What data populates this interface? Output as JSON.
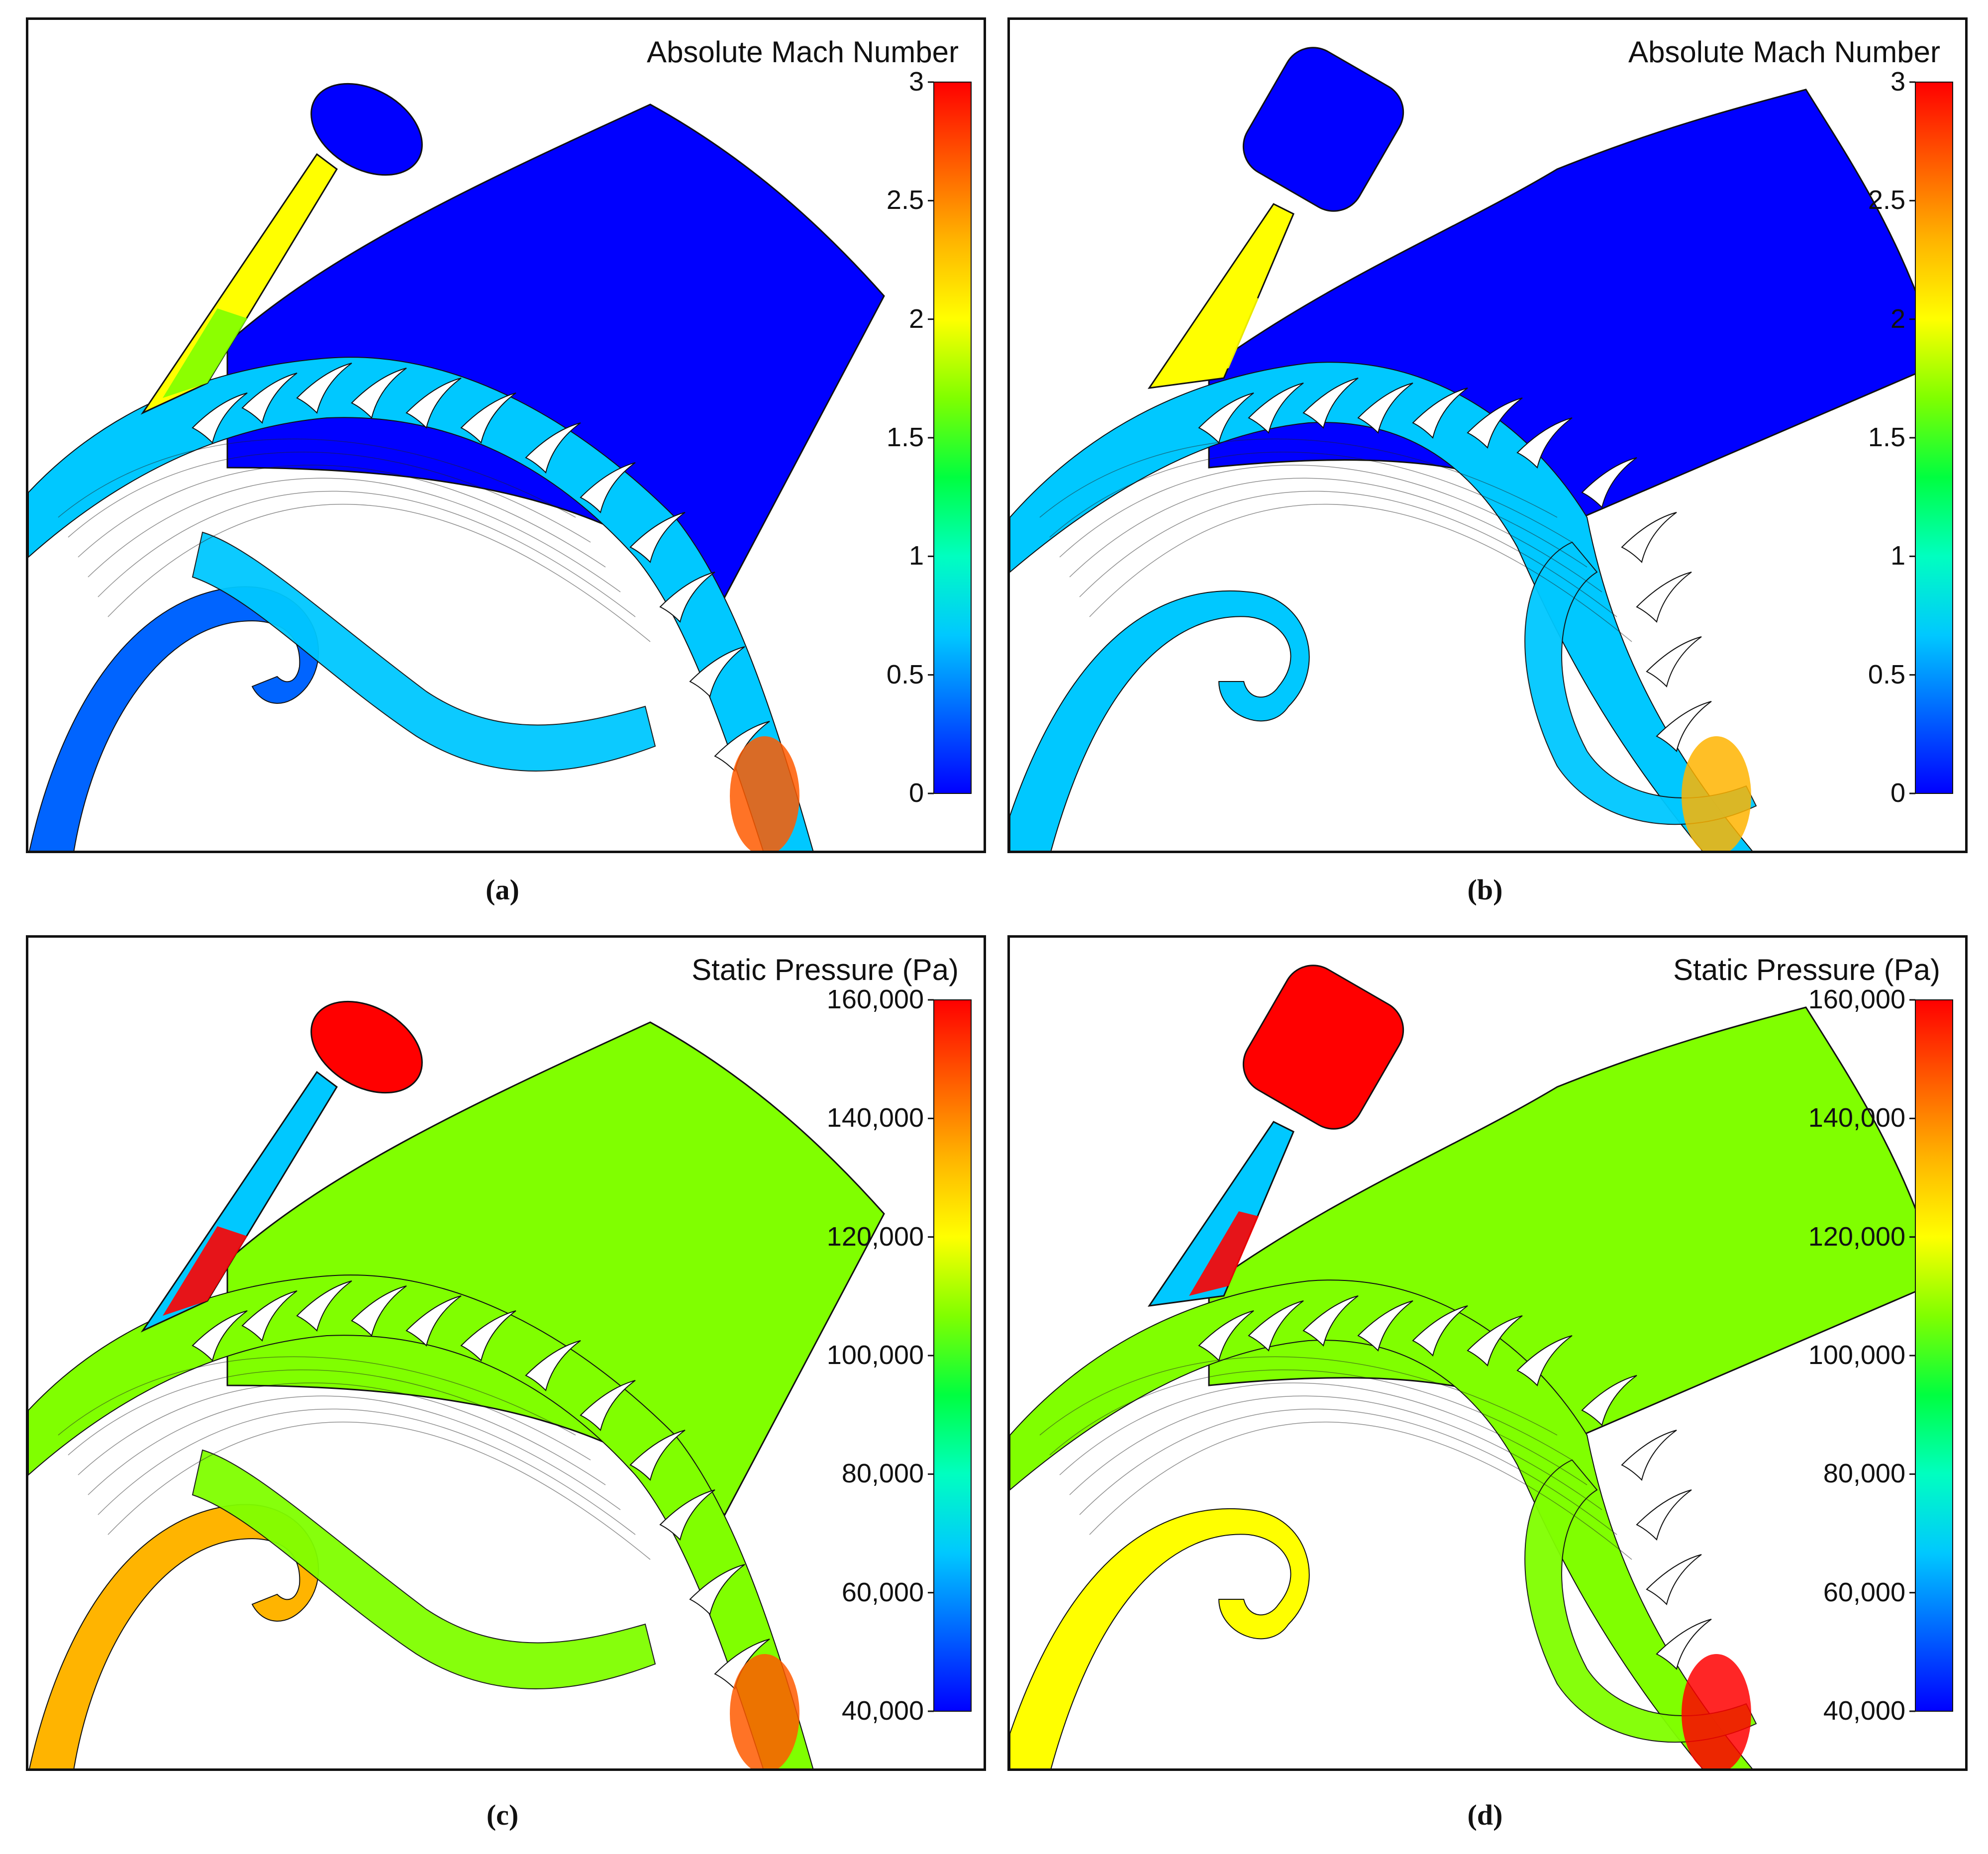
{
  "colors": {
    "jet": [
      "#0000ff",
      "#0064ff",
      "#00c8ff",
      "#00ffc0",
      "#00ff40",
      "#80ff00",
      "#ffff00",
      "#ffb400",
      "#ff5a00",
      "#ff0000"
    ],
    "frame": "#111111"
  },
  "chart_data": [
    {
      "type": "heatmap",
      "caption": "(a)",
      "colorbar_title": "Absolute Mach Number",
      "colorbar_ticks": [
        "3",
        "2.5",
        "2",
        "1.5",
        "1",
        "0.5",
        "0"
      ],
      "range": [
        0,
        3
      ],
      "fields": {
        "background": 0.05,
        "upper_channel": 0.6,
        "lower_channel": 0.35,
        "nozzle": 2.0,
        "throat": 1.8,
        "hot_spot": 2.6
      }
    },
    {
      "type": "heatmap",
      "caption": "(b)",
      "colorbar_title": "Absolute Mach Number",
      "colorbar_ticks": [
        "3",
        "2.5",
        "2",
        "1.5",
        "1",
        "0.5",
        "0"
      ],
      "range": [
        0,
        3
      ],
      "fields": {
        "background": 0.1,
        "upper_channel": 0.6,
        "lower_channel": 0.5,
        "nozzle": 1.9,
        "throat": 2.1,
        "hot_spot": 2.4
      }
    },
    {
      "type": "heatmap",
      "caption": "(c)",
      "colorbar_title": "Static Pressure (Pa)",
      "colorbar_ticks": [
        "160,000",
        "140,000",
        "120,000",
        "100,000",
        "80,000",
        "60,000",
        "40,000"
      ],
      "range": [
        40000,
        160000
      ],
      "fields": {
        "background": 106000,
        "upper_channel": 112000,
        "lower_channel": 130000,
        "nozzle": 60000,
        "throat": 160000,
        "hot_spot": 150000
      }
    },
    {
      "type": "heatmap",
      "caption": "(d)",
      "colorbar_title": "Static Pressure (Pa)",
      "colorbar_ticks": [
        "160,000",
        "140,000",
        "120,000",
        "100,000",
        "80,000",
        "60,000",
        "40,000"
      ],
      "range": [
        40000,
        160000
      ],
      "fields": {
        "background": 108000,
        "upper_channel": 110000,
        "lower_channel": 118000,
        "nozzle": 70000,
        "throat": 160000,
        "hot_spot": 155000
      }
    }
  ]
}
